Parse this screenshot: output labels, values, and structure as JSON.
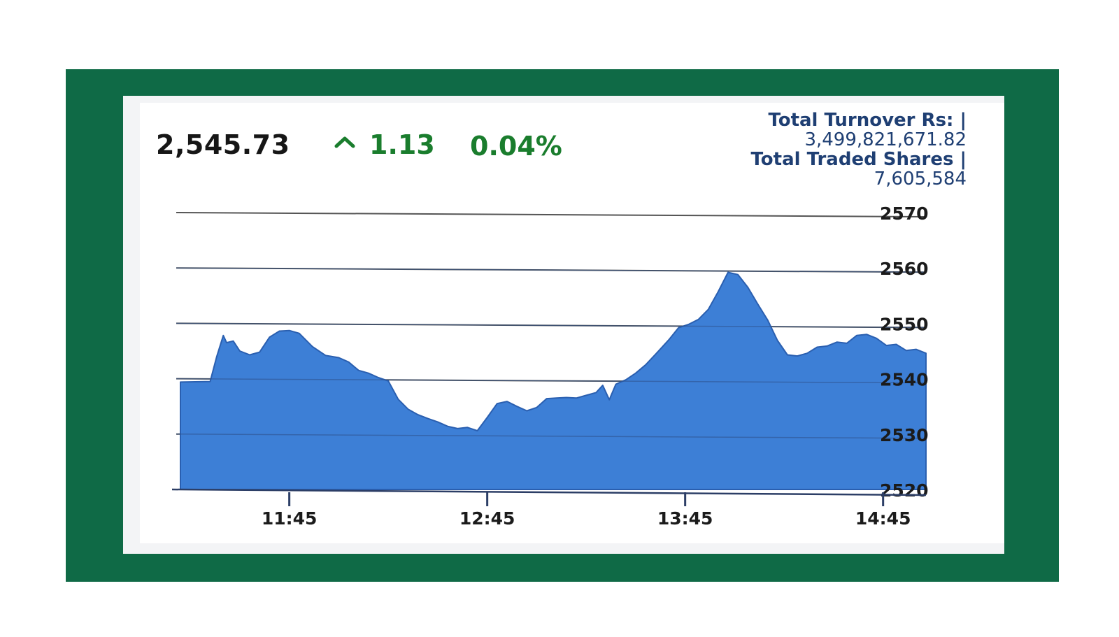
{
  "header": {
    "last_value": "2,545.73",
    "change": "1.13",
    "change_percent": "0.04%",
    "arrow_icon": "caret-up-icon"
  },
  "stats": {
    "turnover_label": "Total Turnover Rs: |",
    "turnover_value": "3,499,821,671.82",
    "shares_label": "Total Traded Shares |",
    "shares_value": "7,605,584"
  },
  "colors": {
    "frame": "#0f6a46",
    "positive": "#1a7d2d",
    "stats_text": "#1f3f73",
    "area_fill": "#3d7fd6",
    "area_stroke": "#2a5fb0"
  },
  "chart_data": {
    "type": "area",
    "title": "",
    "xlabel": "",
    "ylabel": "",
    "x_ticks": [
      "11:45",
      "12:45",
      "13:45",
      "14:45"
    ],
    "y_ticks": [
      2570,
      2560,
      2550,
      2540,
      2530,
      2520
    ],
    "ylim": [
      2520,
      2570
    ],
    "xlim": [
      "11:12",
      "14:58"
    ],
    "grid": true,
    "series": [
      {
        "x": [
          "11:12",
          "11:21",
          "11:23",
          "11:25",
          "11:26",
          "11:28",
          "11:30",
          "11:33",
          "11:36",
          "11:39",
          "11:42",
          "11:45",
          "11:48",
          "11:52",
          "11:56",
          "12:00",
          "12:03",
          "12:06",
          "12:09",
          "12:12",
          "12:15",
          "12:18",
          "12:21",
          "12:24",
          "12:27",
          "12:30",
          "12:33",
          "12:36",
          "12:39",
          "12:42",
          "12:45",
          "12:48",
          "12:51",
          "12:54",
          "12:57",
          "13:00",
          "13:03",
          "13:06",
          "13:09",
          "13:12",
          "13:15",
          "13:18",
          "13:20",
          "13:22",
          "13:24",
          "13:27",
          "13:30",
          "13:33",
          "13:36",
          "13:40",
          "13:43",
          "13:46",
          "13:49",
          "13:52",
          "13:55",
          "13:58",
          "14:01",
          "14:04",
          "14:07",
          "14:10",
          "14:13",
          "14:16",
          "14:19",
          "14:22",
          "14:25",
          "14:28",
          "14:31",
          "14:34",
          "14:37",
          "14:40",
          "14:43",
          "14:46",
          "14:49",
          "14:52",
          "14:55",
          "14:58"
        ],
        "values": [
          2539.4,
          2539.5,
          2544.0,
          2547.8,
          2546.5,
          2546.8,
          2545.0,
          2544.3,
          2544.8,
          2547.5,
          2548.6,
          2548.7,
          2548.2,
          2545.8,
          2544.2,
          2543.8,
          2543.0,
          2541.5,
          2541.0,
          2540.2,
          2539.6,
          2536.3,
          2534.5,
          2533.5,
          2532.8,
          2532.2,
          2531.4,
          2531.0,
          2531.2,
          2530.6,
          2533.0,
          2535.5,
          2535.9,
          2535.0,
          2534.2,
          2534.8,
          2536.4,
          2536.5,
          2536.6,
          2536.5,
          2537.0,
          2537.5,
          2538.8,
          2536.2,
          2539.0,
          2539.8,
          2541.0,
          2542.5,
          2544.4,
          2547.0,
          2549.2,
          2549.8,
          2550.7,
          2552.5,
          2555.7,
          2559.2,
          2558.8,
          2556.5,
          2553.5,
          2550.6,
          2546.9,
          2544.3,
          2544.1,
          2544.6,
          2545.7,
          2545.9,
          2546.6,
          2546.4,
          2547.8,
          2548.0,
          2547.3,
          2546.0,
          2546.2,
          2545.1,
          2545.3,
          2544.6
        ]
      }
    ]
  }
}
